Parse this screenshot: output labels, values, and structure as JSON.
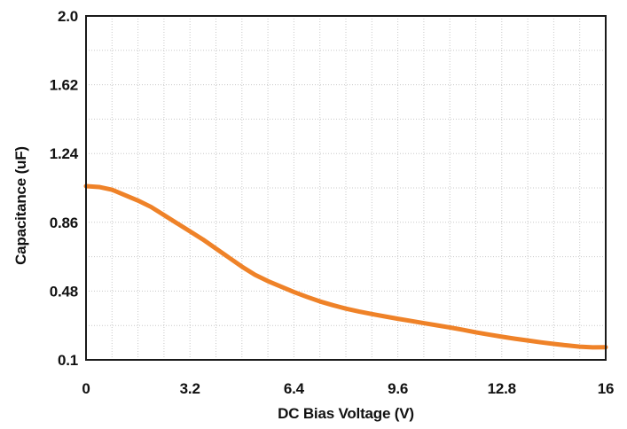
{
  "chart_data": {
    "type": "line",
    "title": "",
    "xlabel": "DC Bias Voltage (V)",
    "ylabel": "Capacitance (uF)",
    "xlim": [
      0,
      16
    ],
    "ylim": [
      0.1,
      2.0
    ],
    "x_ticks": [
      "0",
      "3.2",
      "6.4",
      "9.6",
      "12.8",
      "16"
    ],
    "y_ticks": [
      "0.1",
      "0.48",
      "0.86",
      "1.24",
      "1.62",
      "2.0"
    ],
    "x_tick_values": [
      0,
      3.2,
      6.4,
      9.6,
      12.8,
      16
    ],
    "y_tick_values": [
      0.1,
      0.48,
      0.86,
      1.24,
      1.62,
      2.0
    ],
    "x_minor_grid": [
      0.8,
      1.6,
      2.4,
      4.0,
      4.8,
      5.6,
      7.2,
      8.0,
      8.8,
      10.4,
      11.2,
      12.0,
      13.6,
      14.4,
      15.2
    ],
    "y_minor_grid": [
      0.29,
      0.67,
      1.05,
      1.43,
      1.81
    ],
    "grid": "dotted",
    "legend": "none",
    "series": [
      {
        "color": "#EF8228",
        "x": [
          0,
          0.4,
          0.8,
          1.2,
          1.6,
          2.0,
          2.4,
          2.8,
          3.2,
          3.6,
          4.0,
          4.4,
          4.8,
          5.2,
          5.6,
          6.0,
          6.4,
          6.8,
          7.2,
          7.6,
          8.0,
          8.4,
          8.8,
          9.2,
          9.6,
          10.0,
          10.4,
          10.8,
          11.2,
          11.6,
          12.0,
          12.4,
          12.8,
          13.2,
          13.6,
          14.0,
          14.4,
          14.8,
          15.2,
          15.6,
          16.0
        ],
        "y": [
          1.06,
          1.055,
          1.04,
          1.01,
          0.98,
          0.945,
          0.9,
          0.855,
          0.81,
          0.765,
          0.715,
          0.665,
          0.615,
          0.57,
          0.535,
          0.505,
          0.475,
          0.448,
          0.423,
          0.402,
          0.383,
          0.367,
          0.353,
          0.34,
          0.327,
          0.315,
          0.303,
          0.291,
          0.279,
          0.266,
          0.252,
          0.24,
          0.228,
          0.217,
          0.207,
          0.197,
          0.188,
          0.18,
          0.173,
          0.169,
          0.17
        ]
      }
    ]
  }
}
